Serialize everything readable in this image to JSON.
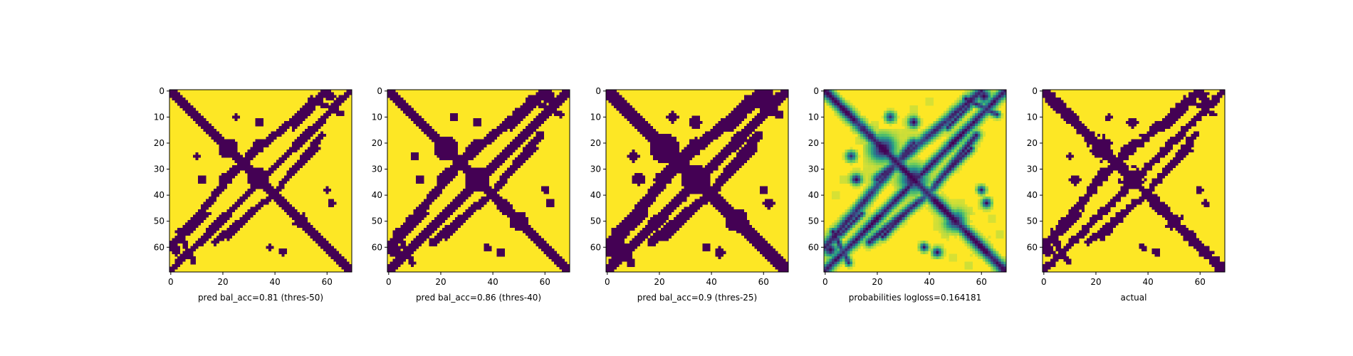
{
  "chart_data": [
    {
      "type": "heatmap",
      "title": "",
      "xlabel": "pred bal_acc=0.81 (thres-50)",
      "ylabel": "",
      "xlim": [
        0,
        69
      ],
      "ylim": [
        69,
        0
      ],
      "x_ticks": [
        "0",
        "20",
        "40",
        "60"
      ],
      "y_ticks": [
        "0",
        "10",
        "20",
        "30",
        "40",
        "50",
        "60"
      ],
      "colormap": "viridis-binary",
      "variant": "thres50"
    },
    {
      "type": "heatmap",
      "title": "",
      "xlabel": "pred bal_acc=0.86 (thres-40)",
      "ylabel": "",
      "xlim": [
        0,
        69
      ],
      "ylim": [
        69,
        0
      ],
      "x_ticks": [
        "0",
        "20",
        "40",
        "60"
      ],
      "y_ticks": [
        "0",
        "10",
        "20",
        "30",
        "40",
        "50",
        "60"
      ],
      "colormap": "viridis-binary",
      "variant": "thres40"
    },
    {
      "type": "heatmap",
      "title": "",
      "xlabel": "pred bal_acc=0.9 (thres-25)",
      "ylabel": "",
      "xlim": [
        0,
        69
      ],
      "ylim": [
        69,
        0
      ],
      "x_ticks": [
        "0",
        "20",
        "40",
        "60"
      ],
      "y_ticks": [
        "0",
        "10",
        "20",
        "30",
        "40",
        "50",
        "60"
      ],
      "colormap": "viridis-binary",
      "variant": "thres25"
    },
    {
      "type": "heatmap",
      "title": "",
      "xlabel": "probabilities logloss=0.164181",
      "ylabel": "",
      "xlim": [
        0,
        69
      ],
      "ylim": [
        69,
        0
      ],
      "x_ticks": [
        "0",
        "20",
        "40",
        "60"
      ],
      "y_ticks": [
        "0",
        "10",
        "20",
        "30",
        "40",
        "50",
        "60"
      ],
      "colormap": "viridis",
      "variant": "prob"
    },
    {
      "type": "heatmap",
      "title": "",
      "xlabel": "actual",
      "ylabel": "",
      "xlim": [
        0,
        69
      ],
      "ylim": [
        69,
        0
      ],
      "x_ticks": [
        "0",
        "20",
        "40",
        "60"
      ],
      "y_ticks": [
        "0",
        "10",
        "20",
        "30",
        "40",
        "50",
        "60"
      ],
      "colormap": "viridis-binary",
      "variant": "actual"
    }
  ],
  "colors": {
    "low": "#440154",
    "high": "#fde725",
    "mid1": "#21918c",
    "mid2": "#5ec962"
  }
}
